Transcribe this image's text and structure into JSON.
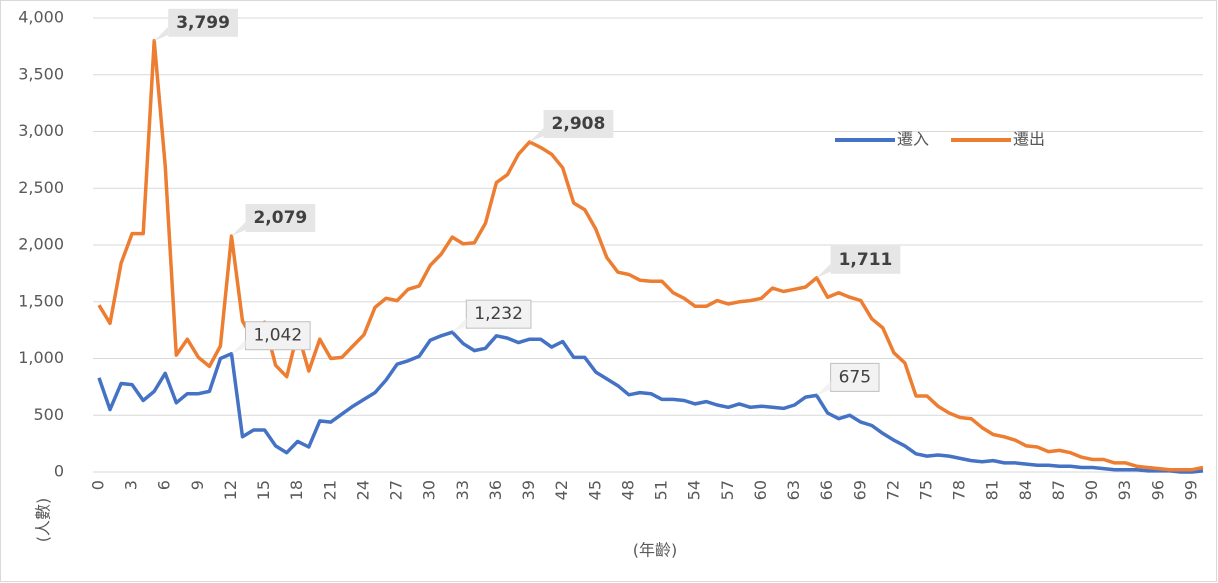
{
  "chart_data": {
    "type": "line",
    "x": [
      0,
      1,
      2,
      3,
      4,
      5,
      6,
      7,
      8,
      9,
      10,
      11,
      12,
      13,
      14,
      15,
      16,
      17,
      18,
      19,
      20,
      21,
      22,
      23,
      24,
      25,
      26,
      27,
      28,
      29,
      30,
      31,
      32,
      33,
      34,
      35,
      36,
      37,
      38,
      39,
      40,
      41,
      42,
      43,
      44,
      45,
      46,
      47,
      48,
      49,
      50,
      51,
      52,
      53,
      54,
      55,
      56,
      57,
      58,
      59,
      60,
      61,
      62,
      63,
      64,
      65,
      66,
      67,
      68,
      69,
      70,
      71,
      72,
      73,
      74,
      75,
      76,
      77,
      78,
      79,
      80,
      81,
      82,
      83,
      84,
      85,
      86,
      87,
      88,
      89,
      90,
      91,
      92,
      93,
      94,
      95,
      96,
      97,
      98,
      99,
      100
    ],
    "xlim": [
      0,
      100
    ],
    "xticks": [
      0,
      3,
      6,
      9,
      12,
      15,
      18,
      21,
      24,
      27,
      30,
      33,
      36,
      39,
      42,
      45,
      48,
      51,
      54,
      57,
      60,
      63,
      66,
      69,
      72,
      75,
      78,
      81,
      84,
      87,
      90,
      93,
      96,
      99
    ],
    "ylim": [
      0,
      4000
    ],
    "yticks": [
      0,
      500,
      {
        "value": 1000,
        "label": "1,000"
      },
      {
        "value": 1500,
        "label": "1,500"
      },
      {
        "value": 2000,
        "label": "2,000"
      },
      {
        "value": 2500,
        "label": "2,500"
      },
      {
        "value": 3000,
        "label": "3,000"
      },
      {
        "value": 3500,
        "label": "3,500"
      },
      {
        "value": 4000,
        "label": "4,000"
      }
    ],
    "grid": true,
    "xlabel": "(年齡)",
    "ylabel": "(人數)",
    "legend": "upper right",
    "series": [
      {
        "name": "遷入",
        "color": "#4472c4",
        "values": [
          830,
          550,
          780,
          770,
          630,
          710,
          870,
          610,
          690,
          690,
          710,
          1000,
          1042,
          310,
          370,
          370,
          230,
          170,
          270,
          220,
          450,
          440,
          510,
          580,
          640,
          700,
          810,
          950,
          980,
          1020,
          1160,
          1200,
          1232,
          1130,
          1070,
          1090,
          1200,
          1180,
          1140,
          1170,
          1170,
          1100,
          1150,
          1010,
          1010,
          880,
          820,
          760,
          680,
          700,
          690,
          640,
          640,
          630,
          600,
          620,
          590,
          570,
          600,
          570,
          580,
          570,
          560,
          590,
          660,
          675,
          520,
          470,
          500,
          440,
          410,
          340,
          280,
          230,
          160,
          140,
          150,
          140,
          120,
          100,
          90,
          100,
          80,
          80,
          70,
          60,
          60,
          50,
          50,
          40,
          40,
          30,
          20,
          20,
          20,
          10,
          10,
          10,
          0,
          0,
          10
        ],
        "value_labels": [
          null,
          null,
          null,
          null,
          null,
          null,
          null,
          null,
          null,
          null,
          null,
          null,
          "1,042",
          null,
          null,
          null,
          null,
          null,
          null,
          null,
          null,
          null,
          null,
          null,
          null,
          null,
          null,
          null,
          null,
          null,
          null,
          null,
          "1,232",
          null,
          null,
          null,
          null,
          null,
          null,
          null,
          null,
          null,
          null,
          null,
          null,
          null,
          null,
          null,
          null,
          null,
          null,
          null,
          null,
          null,
          null,
          null,
          null,
          null,
          null,
          null,
          null,
          null,
          null,
          null,
          null,
          "675",
          null,
          null,
          null,
          null,
          null,
          null,
          null,
          null,
          null,
          null,
          null,
          null,
          null,
          null,
          null,
          null,
          null,
          null,
          null,
          null,
          null,
          null,
          null,
          null,
          null,
          null,
          null,
          null,
          null,
          null,
          null,
          null,
          null,
          null,
          null
        ]
      },
      {
        "name": "遷出",
        "color": "#ed7d31",
        "values": [
          1470,
          1310,
          1840,
          2100,
          2100,
          3799,
          2700,
          1030,
          1170,
          1010,
          930,
          1110,
          2079,
          1330,
          1160,
          1320,
          940,
          840,
          1230,
          890,
          1170,
          1000,
          1010,
          1110,
          1210,
          1450,
          1530,
          1510,
          1610,
          1640,
          1820,
          1920,
          2070,
          2010,
          2020,
          2190,
          2550,
          2620,
          2800,
          2908,
          2860,
          2800,
          2680,
          2370,
          2310,
          2140,
          1890,
          1760,
          1740,
          1690,
          1680,
          1680,
          1580,
          1530,
          1460,
          1460,
          1510,
          1480,
          1500,
          1510,
          1530,
          1620,
          1590,
          1610,
          1630,
          1711,
          1540,
          1580,
          1540,
          1510,
          1350,
          1270,
          1050,
          960,
          670,
          670,
          580,
          520,
          480,
          470,
          390,
          330,
          310,
          280,
          230,
          220,
          180,
          190,
          170,
          130,
          110,
          110,
          80,
          80,
          50,
          40,
          30,
          20,
          20,
          20,
          40
        ],
        "value_labels": [
          null,
          null,
          null,
          null,
          null,
          "3,799",
          null,
          null,
          null,
          null,
          null,
          null,
          "2,079",
          null,
          null,
          null,
          null,
          null,
          null,
          null,
          null,
          null,
          null,
          null,
          null,
          null,
          null,
          null,
          null,
          null,
          null,
          null,
          null,
          null,
          null,
          null,
          null,
          null,
          null,
          "2,908",
          null,
          null,
          null,
          null,
          null,
          null,
          null,
          null,
          null,
          null,
          null,
          null,
          null,
          null,
          null,
          null,
          null,
          null,
          null,
          null,
          null,
          null,
          null,
          null,
          null,
          "1,711",
          null,
          null,
          null,
          null,
          null,
          null,
          null,
          null,
          null,
          null,
          null,
          null,
          null,
          null,
          null,
          null,
          null,
          null,
          null,
          null,
          null,
          null,
          null,
          null,
          null,
          null,
          null,
          null,
          null,
          null,
          null,
          null,
          null,
          null,
          null
        ]
      }
    ]
  }
}
